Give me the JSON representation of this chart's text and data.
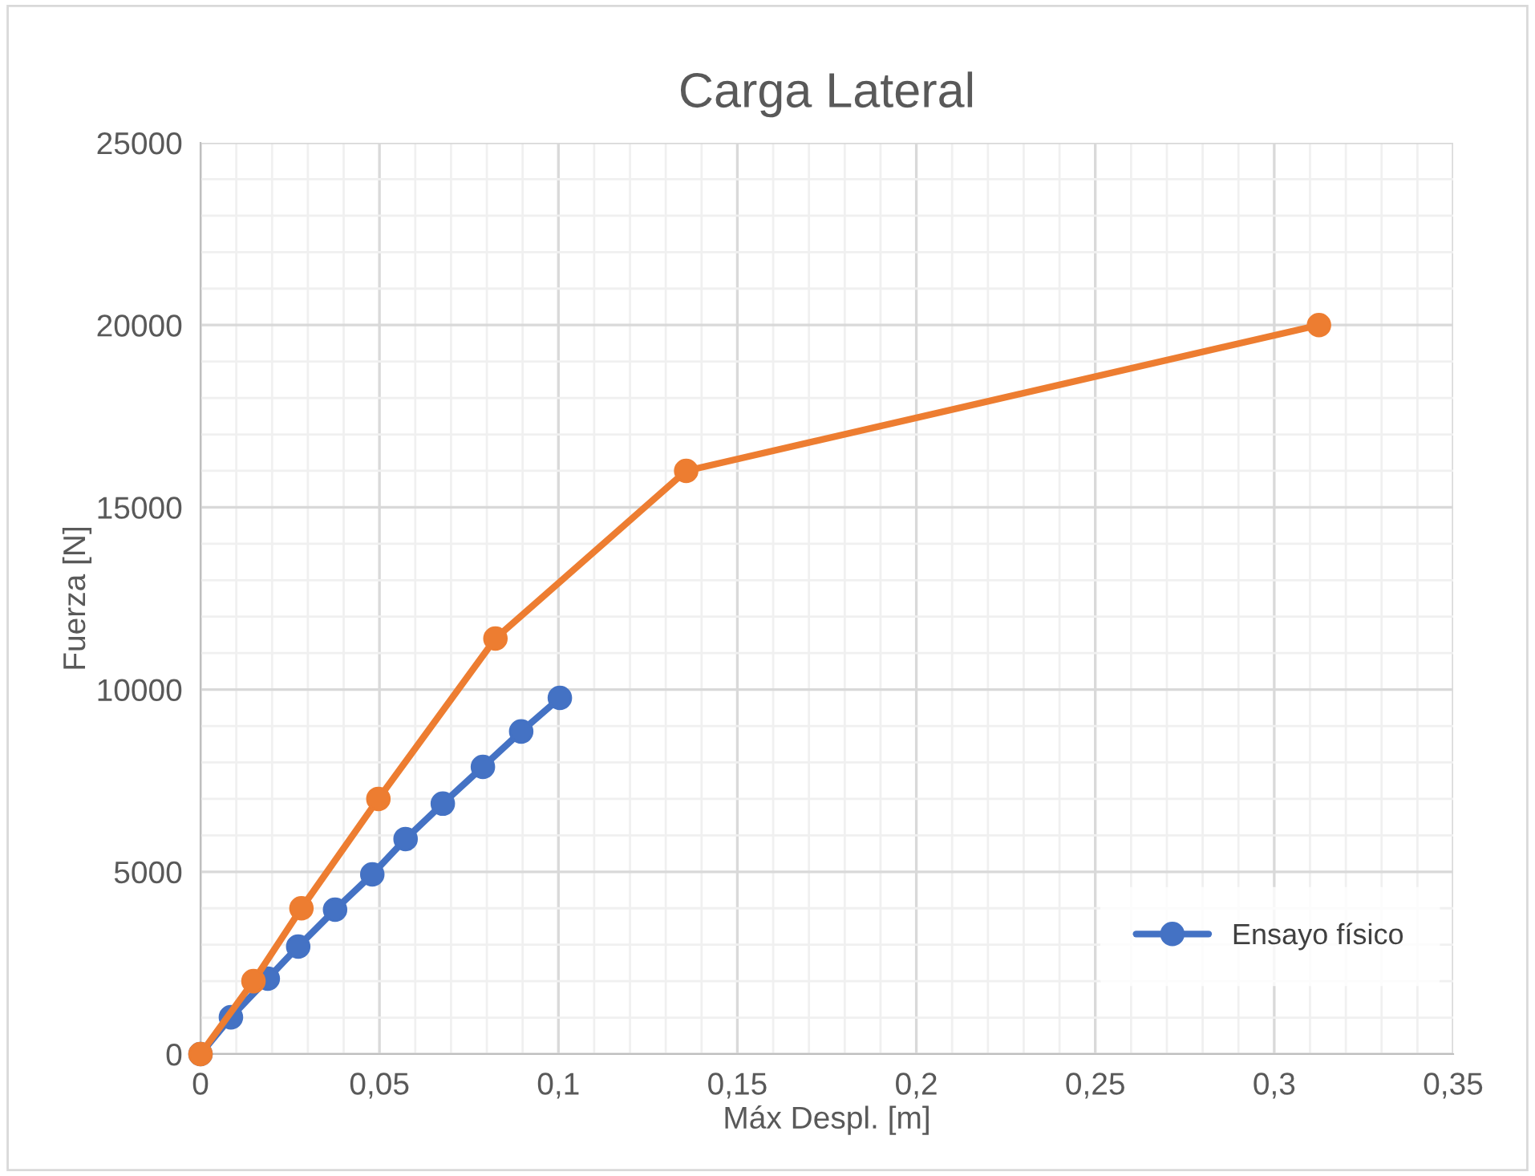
{
  "chart_data": {
    "type": "line",
    "title": "Carga Lateral",
    "xlabel": "Máx Despl. [m]",
    "ylabel": "Fuerza [N]",
    "series": [
      {
        "name": "Ensayo físico",
        "color": "#4472c4",
        "x": [
          0,
          0.0085,
          0.0188,
          0.0273,
          0.0376,
          0.048,
          0.0573,
          0.0677,
          0.0789,
          0.0896,
          0.1004
        ],
        "values": [
          0,
          1010,
          2070,
          2950,
          3960,
          4930,
          5900,
          6870,
          7880,
          8850,
          9770
        ]
      },
      {
        "color": "#ed7d31",
        "x": [
          0,
          0.0148,
          0.0282,
          0.0497,
          0.0824,
          0.1357,
          0.3125
        ],
        "values": [
          0,
          2000,
          4000,
          7000,
          11400,
          16000,
          20000
        ]
      }
    ],
    "xlim": [
      0,
      0.35
    ],
    "ylim": [
      0,
      25000
    ],
    "xticks": [
      {
        "value": 0,
        "label": "0"
      },
      {
        "value": 0.01,
        "label": null
      },
      {
        "value": 0.02,
        "label": null
      },
      {
        "value": 0.03,
        "label": null
      },
      {
        "value": 0.04,
        "label": null
      },
      {
        "value": 0.05,
        "label": "0,05"
      },
      {
        "value": 0.06,
        "label": null
      },
      {
        "value": 0.07,
        "label": null
      },
      {
        "value": 0.08,
        "label": null
      },
      {
        "value": 0.09,
        "label": null
      },
      {
        "value": 0.1,
        "label": "0,1"
      },
      {
        "value": 0.11,
        "label": null
      },
      {
        "value": 0.12,
        "label": null
      },
      {
        "value": 0.13,
        "label": null
      },
      {
        "value": 0.14,
        "label": null
      },
      {
        "value": 0.15,
        "label": "0,15"
      },
      {
        "value": 0.16,
        "label": null
      },
      {
        "value": 0.17,
        "label": null
      },
      {
        "value": 0.18,
        "label": null
      },
      {
        "value": 0.19,
        "label": null
      },
      {
        "value": 0.2,
        "label": "0,2"
      },
      {
        "value": 0.21,
        "label": null
      },
      {
        "value": 0.22,
        "label": null
      },
      {
        "value": 0.23,
        "label": null
      },
      {
        "value": 0.24,
        "label": null
      },
      {
        "value": 0.25,
        "label": "0,25"
      },
      {
        "value": 0.26,
        "label": null
      },
      {
        "value": 0.27,
        "label": null
      },
      {
        "value": 0.28,
        "label": null
      },
      {
        "value": 0.29,
        "label": null
      },
      {
        "value": 0.3,
        "label": "0,3"
      },
      {
        "value": 0.31,
        "label": null
      },
      {
        "value": 0.32,
        "label": null
      },
      {
        "value": 0.33,
        "label": null
      },
      {
        "value": 0.34,
        "label": null
      },
      {
        "value": 0.35,
        "label": "0,35"
      }
    ],
    "yticks": [
      0,
      {
        "value": 1000,
        "label": null
      },
      {
        "value": 2000,
        "label": null
      },
      {
        "value": 3000,
        "label": null
      },
      {
        "value": 4000,
        "label": null
      },
      5000,
      {
        "value": 6000,
        "label": null
      },
      {
        "value": 7000,
        "label": null
      },
      {
        "value": 8000,
        "label": null
      },
      {
        "value": 9000,
        "label": null
      },
      10000,
      {
        "value": 11000,
        "label": null
      },
      {
        "value": 12000,
        "label": null
      },
      {
        "value": 13000,
        "label": null
      },
      {
        "value": 14000,
        "label": null
      },
      15000,
      {
        "value": 16000,
        "label": null
      },
      {
        "value": 17000,
        "label": null
      },
      {
        "value": 18000,
        "label": null
      },
      {
        "value": 19000,
        "label": null
      },
      20000,
      {
        "value": 21000,
        "label": null
      },
      {
        "value": 22000,
        "label": null
      },
      {
        "value": 23000,
        "label": null
      },
      {
        "value": 24000,
        "label": null
      },
      25000
    ],
    "grid": true,
    "legend": "bottom right",
    "marker": "circle",
    "line_style": "solid"
  }
}
